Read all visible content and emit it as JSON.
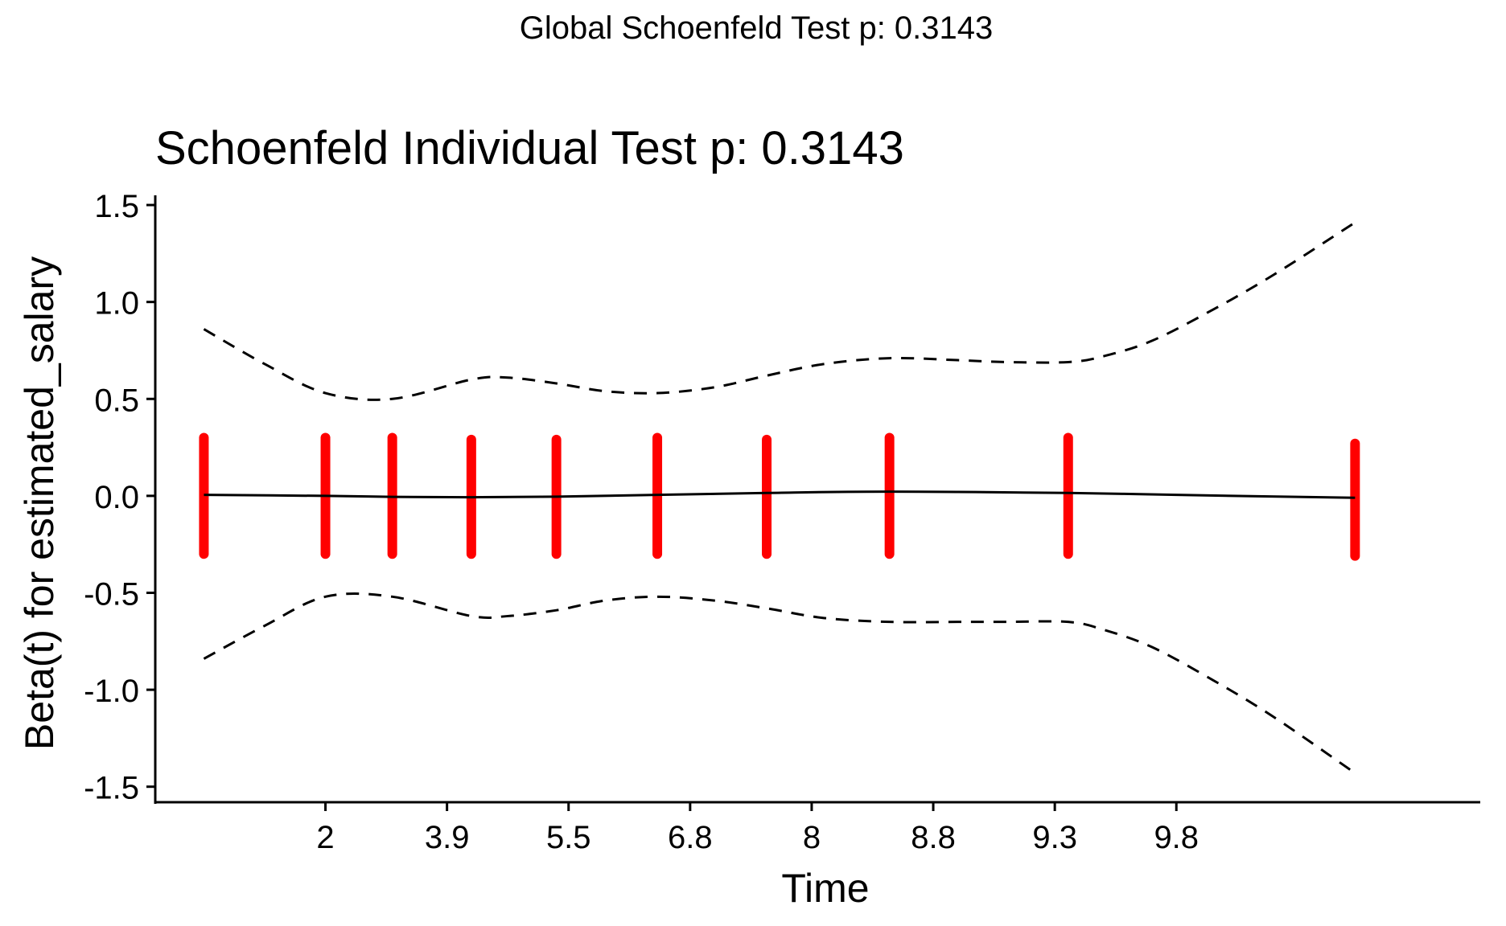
{
  "chart_data": {
    "type": "line",
    "suptitle": "Global Schoenfeld Test p: 0.3143",
    "title": "Schoenfeld Individual Test p: 0.3143",
    "xlabel": "Time",
    "ylabel": "Beta(t) for estimated_salary",
    "xlim": [
      0.6,
      11.5
    ],
    "ylim": [
      -1.58,
      1.55
    ],
    "x_ticks": [
      {
        "pos": 2,
        "label": "2"
      },
      {
        "pos": 3,
        "label": "3.9"
      },
      {
        "pos": 4,
        "label": "5.5"
      },
      {
        "pos": 5,
        "label": "6.8"
      },
      {
        "pos": 6,
        "label": "8"
      },
      {
        "pos": 7,
        "label": "8.8"
      },
      {
        "pos": 8,
        "label": "9.3"
      },
      {
        "pos": 9,
        "label": "9.8"
      }
    ],
    "y_ticks": [
      {
        "value": 1.5,
        "label": "1.5"
      },
      {
        "value": 1.0,
        "label": "1.0"
      },
      {
        "value": 0.5,
        "label": "0.5"
      },
      {
        "value": 0.0,
        "label": "0.0"
      },
      {
        "value": -0.5,
        "label": "-0.5"
      },
      {
        "value": -1.0,
        "label": "-1.0"
      },
      {
        "value": -1.5,
        "label": "-1.5"
      }
    ],
    "residual_columns": [
      {
        "x": 1.0,
        "ymin": -0.3,
        "ymax": 0.3
      },
      {
        "x": 2.0,
        "ymin": -0.3,
        "ymax": 0.3
      },
      {
        "x": 2.55,
        "ymin": -0.3,
        "ymax": 0.3
      },
      {
        "x": 3.2,
        "ymin": -0.3,
        "ymax": 0.29
      },
      {
        "x": 3.9,
        "ymin": -0.3,
        "ymax": 0.29
      },
      {
        "x": 4.73,
        "ymin": -0.3,
        "ymax": 0.3
      },
      {
        "x": 5.63,
        "ymin": -0.3,
        "ymax": 0.29
      },
      {
        "x": 6.64,
        "ymin": -0.3,
        "ymax": 0.3
      },
      {
        "x": 8.11,
        "ymin": -0.3,
        "ymax": 0.3
      },
      {
        "x": 10.47,
        "ymin": -0.31,
        "ymax": 0.27
      }
    ],
    "series": [
      {
        "name": "beta_t",
        "style": "solid",
        "x": [
          1.0,
          2.0,
          2.55,
          3.2,
          3.9,
          4.73,
          5.63,
          6.64,
          8.11,
          9.0,
          10.47
        ],
        "y": [
          0.005,
          0.0,
          -0.005,
          -0.007,
          -0.004,
          0.005,
          0.015,
          0.022,
          0.015,
          0.005,
          -0.01
        ]
      },
      {
        "name": "upper_ci",
        "style": "dashed",
        "x": [
          1.0,
          1.5,
          2.0,
          2.55,
          3.2,
          3.5,
          3.9,
          4.3,
          4.73,
          5.2,
          5.63,
          6.1,
          6.64,
          7.2,
          7.6,
          8.11,
          8.4,
          8.8,
          9.3,
          9.8,
          10.47
        ],
        "y": [
          0.86,
          0.68,
          0.53,
          0.5,
          0.6,
          0.61,
          0.58,
          0.54,
          0.53,
          0.56,
          0.62,
          0.68,
          0.71,
          0.7,
          0.69,
          0.69,
          0.72,
          0.8,
          0.96,
          1.14,
          1.41
        ]
      },
      {
        "name": "lower_ci",
        "style": "dashed",
        "x": [
          1.0,
          1.5,
          2.0,
          2.55,
          3.2,
          3.5,
          3.9,
          4.3,
          4.73,
          5.2,
          5.63,
          6.1,
          6.64,
          7.2,
          7.6,
          8.11,
          8.4,
          8.8,
          9.3,
          9.8,
          10.47
        ],
        "y": [
          -0.84,
          -0.67,
          -0.52,
          -0.52,
          -0.62,
          -0.62,
          -0.59,
          -0.54,
          -0.52,
          -0.54,
          -0.58,
          -0.63,
          -0.65,
          -0.65,
          -0.65,
          -0.65,
          -0.69,
          -0.78,
          -0.95,
          -1.14,
          -1.43
        ]
      }
    ],
    "colors": {
      "residuals": "#ff0000",
      "line": "#000000",
      "axis": "#000000"
    }
  }
}
